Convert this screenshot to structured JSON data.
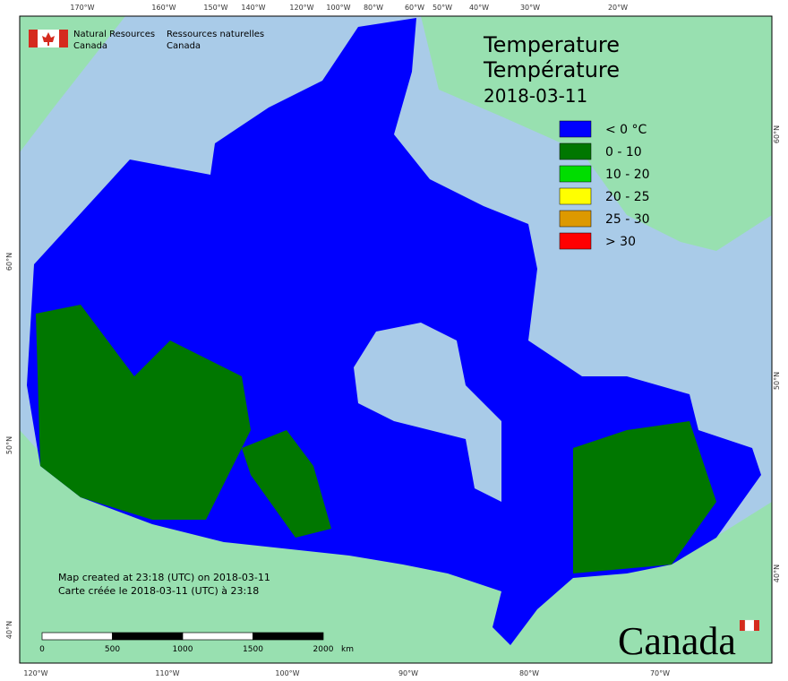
{
  "header": {
    "agency_en": [
      "Natural Resources",
      "Canada"
    ],
    "agency_fr": [
      "Ressources naturelles",
      "Canada"
    ]
  },
  "title": [
    "Temperature",
    "Température",
    "2018-03-11"
  ],
  "legend": [
    {
      "label": "< 0 °C",
      "color": "#0000ff"
    },
    {
      "label": "0 - 10",
      "color": "#007700"
    },
    {
      "label": "10 - 20",
      "color": "#00dd00"
    },
    {
      "label": "20 - 25",
      "color": "#ffff00"
    },
    {
      "label": "25 - 30",
      "color": "#dd9900"
    },
    {
      "label": "> 30",
      "color": "#ff0000"
    }
  ],
  "credits": [
    "Map created at 23:18 (UTC) on 2018-03-11",
    "Carte créée le 2018-03-11 (UTC) à 23:18"
  ],
  "scale": {
    "ticks": [
      "0",
      "500",
      "1000",
      "1500",
      "2000"
    ],
    "unit": "km"
  },
  "graticule": {
    "top": [
      "170°W",
      "160°W",
      "150°W",
      "140°W",
      "120°W",
      "100°W",
      "80°W",
      "60°W",
      "50°W",
      "40°W",
      "30°W",
      "20°W"
    ],
    "bottom": [
      "120°W",
      "110°W",
      "100°W",
      "90°W",
      "80°W",
      "70°W"
    ],
    "left": [
      "60°N",
      "50°N",
      "40°N"
    ],
    "right": [
      "60°N",
      "50°N",
      "40°N"
    ]
  },
  "wordmark": "Canada"
}
